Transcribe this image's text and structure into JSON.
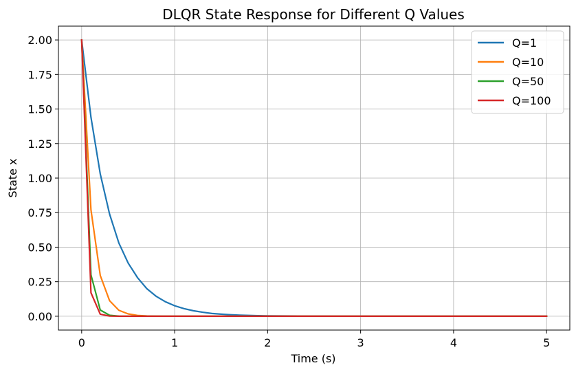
{
  "chart_data": {
    "type": "line",
    "title": "DLQR State Response for Different Q Values",
    "xlabel": "Time (s)",
    "ylabel": "State x",
    "xlim": [
      -0.25,
      5.25
    ],
    "ylim": [
      -0.1,
      2.1
    ],
    "xticks": [
      0,
      1,
      2,
      3,
      4,
      5
    ],
    "xtick_labels": [
      "0",
      "1",
      "2",
      "3",
      "4",
      "5"
    ],
    "yticks": [
      0.0,
      0.25,
      0.5,
      0.75,
      1.0,
      1.25,
      1.5,
      1.75,
      2.0
    ],
    "ytick_labels": [
      "0.00",
      "0.25",
      "0.50",
      "0.75",
      "1.00",
      "1.25",
      "1.50",
      "1.75",
      "2.00"
    ],
    "grid": true,
    "legend_position": "top-right",
    "x": [
      0.0,
      0.1,
      0.2,
      0.3,
      0.4,
      0.5,
      0.6,
      0.7,
      0.8,
      0.9,
      1.0,
      1.1,
      1.2,
      1.3,
      1.4,
      1.5,
      1.6,
      1.7,
      1.8,
      1.9,
      2.0,
      2.5,
      3.0,
      3.5,
      4.0,
      4.5,
      5.0
    ],
    "series": [
      {
        "name": "Q=1",
        "color": "#1f77b4",
        "values": [
          2.0,
          1.44,
          1.03,
          0.74,
          0.53,
          0.385,
          0.28,
          0.2,
          0.145,
          0.105,
          0.076,
          0.055,
          0.04,
          0.029,
          0.02,
          0.015,
          0.011,
          0.008,
          0.006,
          0.004,
          0.003,
          0.001,
          0.0,
          0.0,
          0.0,
          0.0,
          0.0
        ]
      },
      {
        "name": "Q=10",
        "color": "#ff7f0e",
        "values": [
          2.0,
          0.77,
          0.295,
          0.113,
          0.043,
          0.017,
          0.006,
          0.002,
          0.001,
          0.0,
          0.0,
          0.0,
          0.0,
          0.0,
          0.0,
          0.0,
          0.0,
          0.0,
          0.0,
          0.0,
          0.0,
          0.0,
          0.0,
          0.0,
          0.0,
          0.0,
          0.0
        ]
      },
      {
        "name": "Q=50",
        "color": "#2ca02c",
        "values": [
          2.0,
          0.3,
          0.045,
          0.007,
          0.001,
          0.0,
          0.0,
          0.0,
          0.0,
          0.0,
          0.0,
          0.0,
          0.0,
          0.0,
          0.0,
          0.0,
          0.0,
          0.0,
          0.0,
          0.0,
          0.0,
          0.0,
          0.0,
          0.0,
          0.0,
          0.0,
          0.0
        ]
      },
      {
        "name": "Q=100",
        "color": "#d62728",
        "values": [
          2.0,
          0.17,
          0.015,
          0.001,
          0.0,
          0.0,
          0.0,
          0.0,
          0.0,
          0.0,
          0.0,
          0.0,
          0.0,
          0.0,
          0.0,
          0.0,
          0.0,
          0.0,
          0.0,
          0.0,
          0.0,
          0.0,
          0.0,
          0.0,
          0.0,
          0.0,
          0.0
        ]
      }
    ]
  }
}
